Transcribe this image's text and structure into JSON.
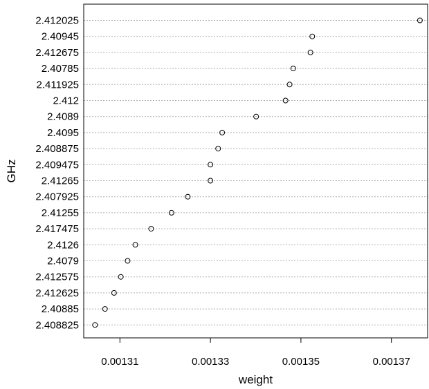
{
  "chart_data": {
    "type": "scatter",
    "subtype": "dotchart",
    "title": "",
    "xlabel": "weight",
    "ylabel": "GHz",
    "xlim": [
      0.001302,
      0.001378
    ],
    "grid": {
      "horizontal": true,
      "style": "dotted"
    },
    "xticks": [
      0.00131,
      0.00133,
      0.00135,
      0.00137
    ],
    "xtick_labels": [
      "0.00131",
      "0.00133",
      "0.00135",
      "0.00137"
    ],
    "categories": [
      "2.412025",
      "2.40945",
      "2.412675",
      "2.40785",
      "2.411925",
      "2.412",
      "2.4089",
      "2.4095",
      "2.408875",
      "2.409475",
      "2.41265",
      "2.407925",
      "2.41255",
      "2.417475",
      "2.4126",
      "2.4079",
      "2.412575",
      "2.412625",
      "2.40885",
      "2.408825"
    ],
    "values": [
      0.0013763,
      0.0013525,
      0.0013521,
      0.0013483,
      0.0013475,
      0.0013466,
      0.0013401,
      0.0013326,
      0.0013317,
      0.00133,
      0.00133,
      0.001325,
      0.0013214,
      0.0013169,
      0.0013134,
      0.0013117,
      0.0013102,
      0.0013087,
      0.0013067,
      0.0013045
    ],
    "marker": "open-circle",
    "colors": {
      "marker": "#000000",
      "grid": "#b0b0b0",
      "frame": "#000000"
    }
  }
}
